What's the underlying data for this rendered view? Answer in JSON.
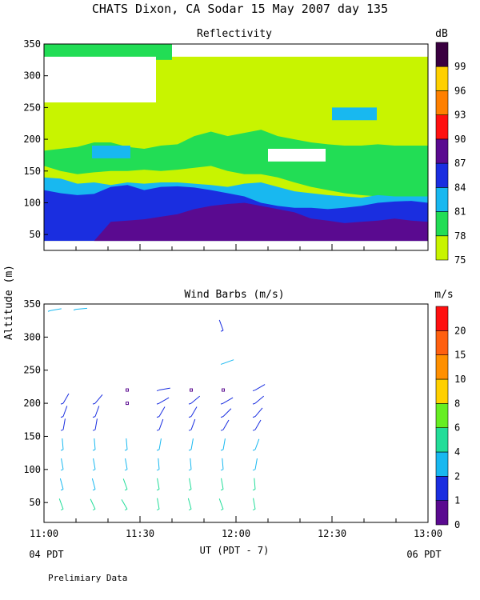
{
  "page": {
    "title": "CHATS Dixon, CA  Sodar  15 May 2007  day 135",
    "shared_ylabel": "Altitude (m)",
    "xlabel": "UT  (PDT - 7)",
    "x_left_note": "04 PDT",
    "x_right_note": "06 PDT",
    "footer_note": "Prelimiary Data"
  },
  "chart_data": [
    {
      "type": "heatmap",
      "title": "Reflectivity",
      "colorbar_unit": "dB",
      "colorbar_ticks": [
        "75",
        "78",
        "81",
        "84",
        "87",
        "90",
        "93",
        "96",
        "99"
      ],
      "colorbar_colors": [
        "#c8f400",
        "#22dd55",
        "#18b8f0",
        "#1a2ee0",
        "#5a0a90",
        "#ff1010",
        "#ff8000",
        "#ffd000",
        "#3a0040"
      ],
      "x_range": [
        "11:00",
        "13:00"
      ],
      "x_ticks": [
        "11:00",
        "11:30",
        "12:00",
        "12:30",
        "13:00"
      ],
      "ylim": [
        25,
        350
      ],
      "yticks": [
        50,
        100,
        150,
        200,
        250,
        300,
        350
      ],
      "bands": [
        {
          "level": "78",
          "layer": "upper cloud",
          "color": "#22dd55",
          "top": [
            182,
            185,
            188,
            195,
            195,
            188,
            185,
            190,
            192,
            205,
            212,
            205,
            210,
            215,
            205,
            200,
            195,
            192,
            190,
            190,
            192,
            190,
            190,
            190
          ],
          "bottom": [
            158,
            150,
            145,
            148,
            150,
            150,
            152,
            150,
            152,
            155,
            158,
            150,
            145,
            145,
            140,
            132,
            125,
            120,
            115,
            112,
            110,
            110,
            110,
            110
          ]
        },
        {
          "level": "81",
          "layer": "layer",
          "color": "#18b8f0",
          "top": [
            140,
            138,
            130,
            132,
            128,
            132,
            130,
            132,
            132,
            130,
            128,
            125,
            130,
            132,
            125,
            118,
            115,
            112,
            110,
            108,
            112,
            110,
            110,
            110
          ],
          "bottom": [
            100,
            98,
            95,
            96,
            98,
            100,
            100,
            96,
            96,
            95,
            92,
            90,
            88,
            85,
            82,
            80,
            80,
            85,
            88,
            92,
            92,
            90,
            90,
            90
          ]
        },
        {
          "level": "84",
          "layer": "layer",
          "color": "#1a2ee0",
          "top": [
            120,
            115,
            112,
            114,
            125,
            128,
            120,
            125,
            126,
            124,
            120,
            115,
            110,
            100,
            95,
            92,
            92,
            90,
            92,
            95,
            100,
            102,
            103,
            100
          ],
          "bottom": [
            40,
            40,
            40,
            40,
            40,
            40,
            40,
            40,
            40,
            40,
            40,
            40,
            40,
            40,
            40,
            40,
            40,
            40,
            40,
            40,
            40,
            40,
            40,
            40
          ]
        },
        {
          "level": "87",
          "layer": "layer",
          "color": "#5a0a90",
          "top": [
            40,
            40,
            40,
            40,
            70,
            72,
            74,
            78,
            82,
            90,
            95,
            98,
            100,
            95,
            90,
            85,
            75,
            72,
            68,
            70,
            72,
            75,
            72,
            70
          ],
          "bottom": [
            40,
            40,
            40,
            40,
            40,
            40,
            40,
            40,
            40,
            40,
            40,
            40,
            40,
            40,
            40,
            40,
            40,
            40,
            40,
            40,
            40,
            40,
            40,
            40
          ]
        }
      ],
      "upper_patches": [
        {
          "level": "78",
          "color": "#22dd55",
          "altitude_range": [
            325,
            350
          ],
          "x_range": [
            "11:00",
            "11:40"
          ]
        },
        {
          "level": "81",
          "color": "#18b8f0",
          "altitude_range": [
            170,
            190
          ],
          "x_range": [
            "11:15",
            "11:27"
          ]
        },
        {
          "level": "81",
          "color": "#18b8f0",
          "altitude_range": [
            230,
            250
          ],
          "x_range": [
            "12:30",
            "12:44"
          ]
        }
      ]
    },
    {
      "type": "scatter",
      "title": "Wind Barbs (m/s)",
      "colorbar_unit": "m/s",
      "colorbar_ticks": [
        "0",
        "1",
        "2",
        "4",
        "6",
        "8",
        "10",
        "15",
        "20"
      ],
      "colorbar_colors": [
        "#5a0a90",
        "#1a2ee0",
        "#18b8f0",
        "#22dd99",
        "#66ee22",
        "#ffd000",
        "#ff9000",
        "#ff6010",
        "#ff1010"
      ],
      "x_range": [
        "11:00",
        "13:00"
      ],
      "x_ticks": [
        "11:00",
        "11:30",
        "12:00",
        "12:30",
        "13:00"
      ],
      "ylim": [
        20,
        350
      ],
      "yticks": [
        50,
        100,
        150,
        200,
        250,
        300,
        350
      ],
      "barbs": [
        {
          "time": "11:06",
          "alt": [
            40,
            70,
            100,
            130,
            160,
            180,
            200
          ],
          "speed": [
            4,
            3,
            2.5,
            2,
            1.5,
            1,
            1
          ],
          "dir": [
            -20,
            -15,
            -10,
            -5,
            10,
            20,
            30
          ]
        },
        {
          "time": "11:16",
          "alt": [
            40,
            70,
            100,
            130,
            160,
            180,
            200
          ],
          "speed": [
            4,
            3.5,
            2.5,
            2,
            1.5,
            1.2,
            1
          ],
          "dir": [
            -25,
            -15,
            -10,
            -5,
            10,
            20,
            40
          ]
        },
        {
          "time": "11:26",
          "alt": [
            40,
            70,
            100,
            130,
            200,
            220
          ],
          "speed": [
            5,
            4,
            3,
            2,
            0.3,
            0.3
          ],
          "dir": [
            -30,
            -20,
            -10,
            -5,
            0,
            0
          ]
        },
        {
          "time": "11:36",
          "alt": [
            40,
            70,
            100,
            130,
            160,
            180,
            200,
            220
          ],
          "speed": [
            5,
            4,
            3,
            2,
            1.5,
            1.2,
            1,
            1
          ],
          "dir": [
            -10,
            -10,
            -5,
            10,
            20,
            30,
            60,
            80
          ]
        },
        {
          "time": "11:46",
          "alt": [
            40,
            70,
            100,
            130,
            160,
            180,
            200,
            220
          ],
          "speed": [
            5,
            4,
            3,
            2,
            1.5,
            1.2,
            1,
            0.3
          ],
          "dir": [
            -15,
            -10,
            -5,
            10,
            20,
            30,
            50,
            0
          ]
        },
        {
          "time": "11:56",
          "alt": [
            40,
            70,
            100,
            130,
            160,
            180,
            200,
            220,
            260,
            310
          ],
          "speed": [
            5,
            4,
            3,
            2,
            1.5,
            1.2,
            1,
            0.3,
            2,
            1
          ],
          "dir": [
            -20,
            -10,
            -5,
            10,
            30,
            45,
            60,
            0,
            70,
            -20
          ]
        },
        {
          "time": "12:06",
          "alt": [
            40,
            70,
            100,
            130,
            160,
            180,
            200,
            220
          ],
          "speed": [
            5,
            4,
            3,
            2,
            1.5,
            1.2,
            1,
            1
          ],
          "dir": [
            -10,
            -5,
            10,
            20,
            30,
            40,
            50,
            60
          ]
        }
      ],
      "top_barbs": [
        {
          "time": "11:02",
          "alt": 340,
          "speed": 2,
          "dir": 80
        },
        {
          "time": "11:10",
          "alt": 342,
          "speed": 2,
          "dir": 85
        }
      ]
    }
  ]
}
